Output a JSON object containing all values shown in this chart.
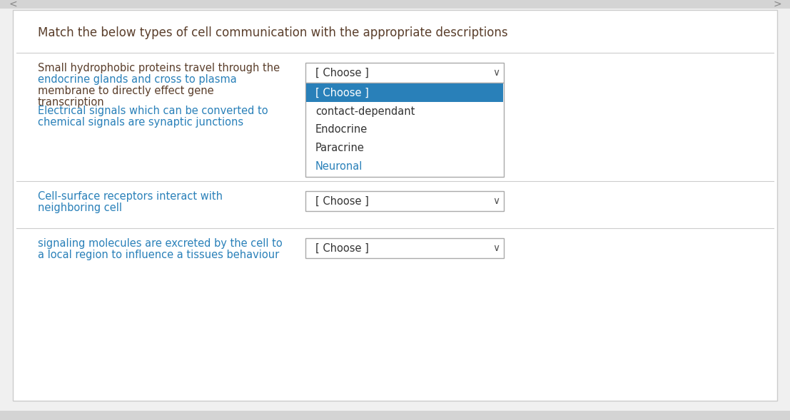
{
  "title": "Match the below types of cell communication with the appropriate descriptions",
  "title_color": "#5a3e2b",
  "title_fontsize": 12,
  "bg_color": "#ffffff",
  "outer_border_color": "#cccccc",
  "separator_color": "#cccccc",
  "rows": [
    {
      "description_lines": [
        "Small hydrophobic proteins travel through the",
        "endocrine glands and cross to plasma",
        "membrane to directly effect gene",
        "transcription"
      ],
      "desc_color_mixed": [
        "#5a3e2b",
        "#2980b9",
        "#5a3e2b",
        "#5a3e2b"
      ],
      "has_dropdown": true,
      "dropdown_open": true,
      "dropdown_label": "[ Choose ]",
      "dropdown_items": [
        "[ Choose ]",
        "contact-dependant",
        "Endocrine",
        "Paracrine",
        "Neuronal"
      ],
      "dropdown_item_colors": [
        "#ffffff",
        "#333333",
        "#333333",
        "#333333",
        "#2980b9"
      ],
      "dropdown_selected": 0,
      "dropdown_selected_bg": "#2980b9",
      "dropdown_selected_color": "#ffffff"
    },
    {
      "description_lines": [
        "Electrical signals which can be converted to",
        "chemical signals are synaptic junctions"
      ],
      "desc_color": "#2980b9",
      "has_dropdown": false,
      "dropdown_label": "[ Choose ]"
    },
    {
      "description_lines": [
        "Cell-surface receptors interact with",
        "neighboring cell"
      ],
      "desc_color": "#2980b9",
      "has_dropdown": true,
      "dropdown_open": false,
      "dropdown_label": "[ Choose ]"
    },
    {
      "description_lines": [
        "signaling molecules are excreted by the cell to",
        "a local region to influence a tissues behaviour"
      ],
      "desc_color": "#2980b9",
      "has_dropdown": true,
      "dropdown_open": false,
      "dropdown_label": "[ Choose ]"
    }
  ],
  "page_bg": "#f0f0f0",
  "top_bar_color": "#d4d4d4",
  "bottom_bar_color": "#d4d4d4"
}
